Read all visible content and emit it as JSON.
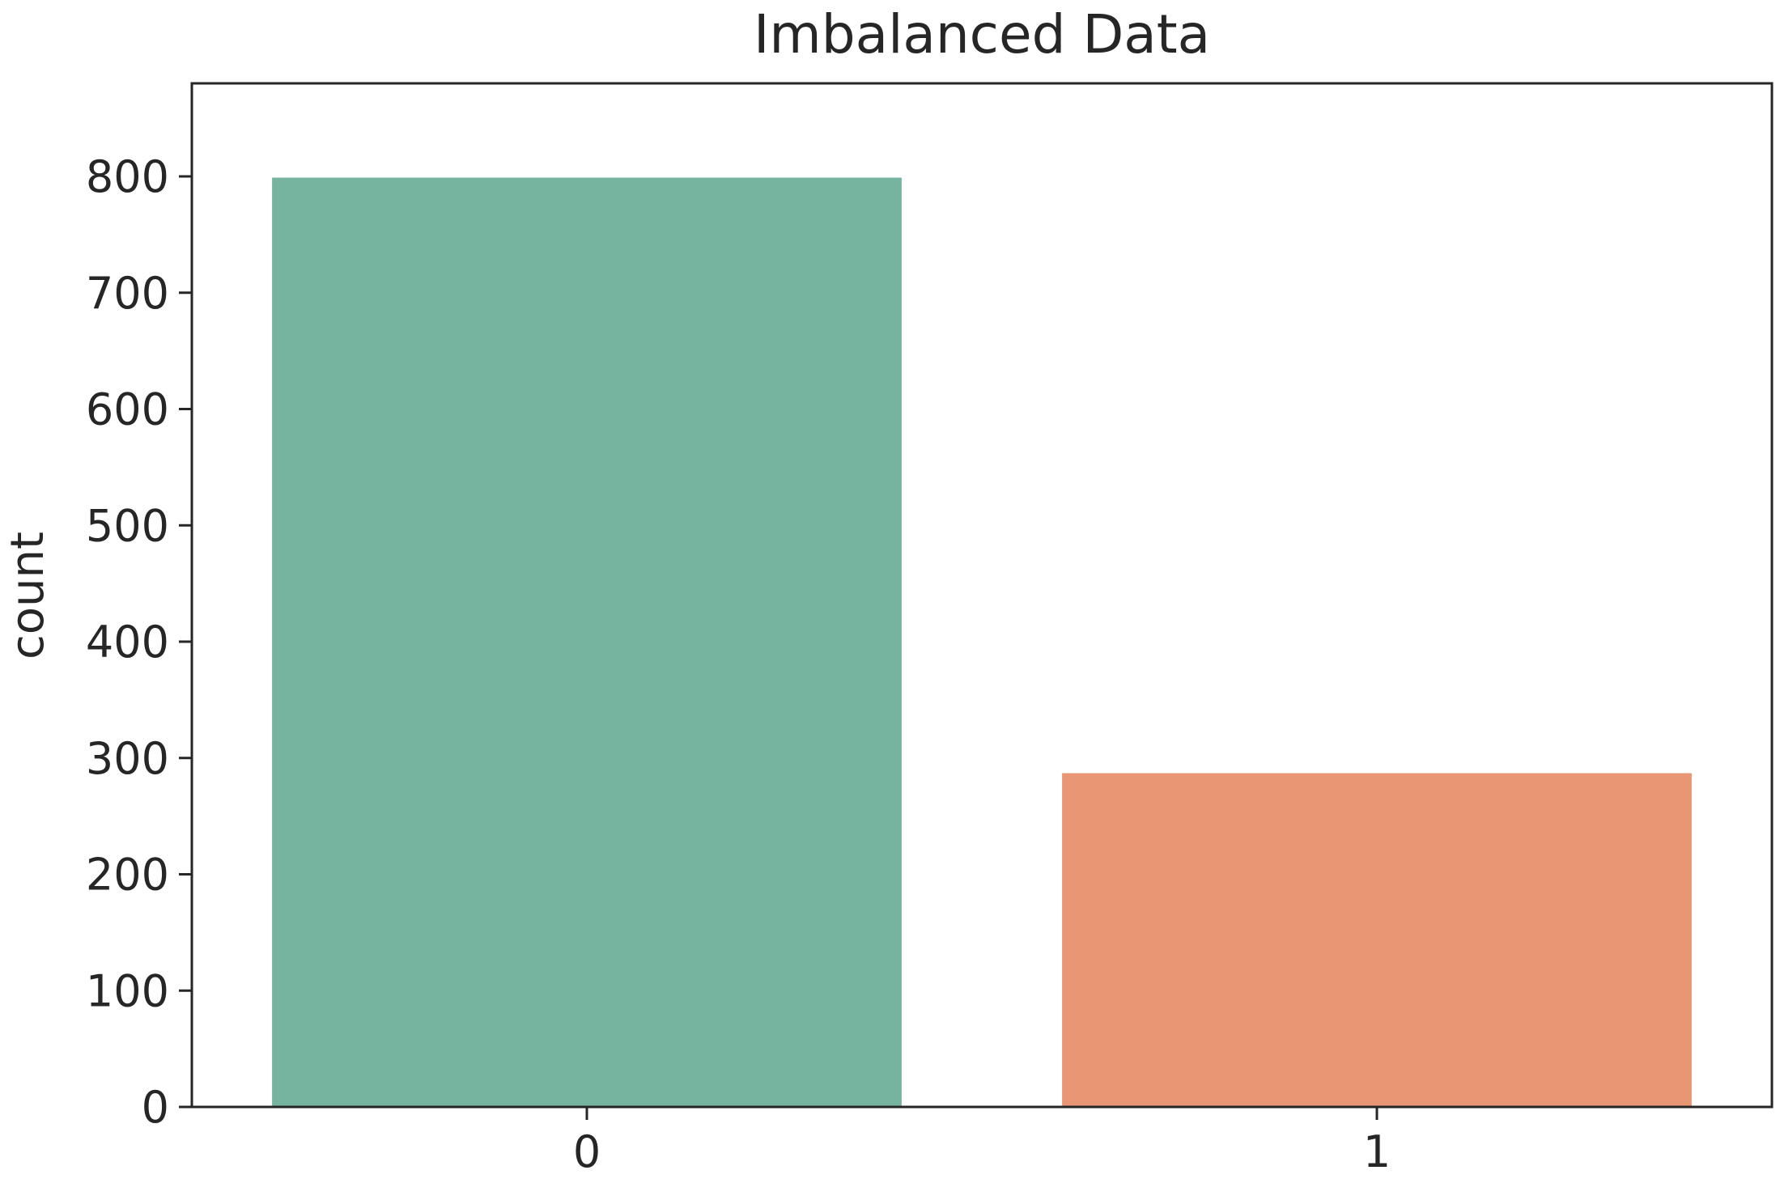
{
  "chart_data": {
    "type": "bar",
    "title": "Imbalanced Data",
    "xlabel": "",
    "ylabel": "count",
    "categories": [
      "0",
      "1"
    ],
    "values": [
      800,
      288
    ],
    "colors": [
      "#76b4a0",
      "#e89674"
    ],
    "ylim": [
      0,
      880
    ],
    "yticks": [
      0,
      100,
      200,
      300,
      400,
      500,
      600,
      700,
      800
    ],
    "ytick_labels": [
      "0",
      "100",
      "200",
      "300",
      "400",
      "500",
      "600",
      "700",
      "800"
    ],
    "grid": false,
    "legend": "none"
  }
}
